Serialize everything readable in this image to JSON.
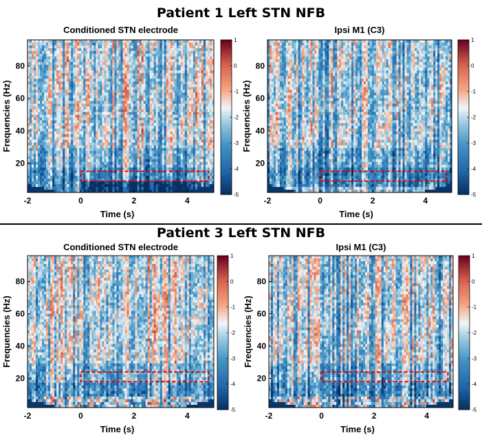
{
  "sections": [
    {
      "title": "Patient 1 Left STN NFB",
      "panels": [
        {
          "title": "Conditioned STN electrode"
        },
        {
          "title": "Ipsi M1 (C3)"
        }
      ]
    },
    {
      "title": "Patient 3 Left STN NFB",
      "panels": [
        {
          "title": "Conditioned STN electrode"
        },
        {
          "title": "Ipsi M1 (C3)"
        }
      ]
    }
  ],
  "chart_data": [
    {
      "type": "heatmap",
      "title": "Conditioned STN electrode",
      "section": "Patient 1 Left STN NFB",
      "xlabel": "Time (s)",
      "ylabel": "Frequencies (Hz)",
      "xlim": [
        -2,
        5
      ],
      "ylim": [
        2,
        96
      ],
      "xticks": [
        "-2",
        "0",
        "2",
        "4"
      ],
      "yticks": [
        "20",
        "40",
        "60",
        "80"
      ],
      "colorbar": {
        "range": [
          -5,
          1
        ],
        "ticks": [
          "1",
          "0",
          "-1",
          "-2",
          "-3",
          "-4",
          "-5"
        ],
        "colormap": "blue-white-red"
      },
      "highlight_box": {
        "x": [
          0,
          4.8
        ],
        "y": [
          9,
          15
        ],
        "color": "#e00000",
        "style": "dashed"
      }
    },
    {
      "type": "heatmap",
      "title": "Ipsi M1 (C3)",
      "section": "Patient 1 Left STN NFB",
      "xlabel": "Time (s)",
      "ylabel": "Frequencies (Hz)",
      "xlim": [
        -2,
        5
      ],
      "ylim": [
        2,
        96
      ],
      "xticks": [
        "-2",
        "0",
        "2",
        "4"
      ],
      "yticks": [
        "20",
        "40",
        "60",
        "80"
      ],
      "colorbar": {
        "range": [
          -5,
          1
        ],
        "ticks": [
          "1",
          "0",
          "-1",
          "-2",
          "-3",
          "-4",
          "-5"
        ],
        "colormap": "blue-white-red"
      },
      "highlight_box": {
        "x": [
          0,
          4.8
        ],
        "y": [
          9,
          15
        ],
        "color": "#e00000",
        "style": "dashed"
      }
    },
    {
      "type": "heatmap",
      "title": "Conditioned STN electrode",
      "section": "Patient 3 Left STN NFB",
      "xlabel": "Time (s)",
      "ylabel": "Frequencies (Hz)",
      "xlim": [
        -2,
        5
      ],
      "ylim": [
        2,
        96
      ],
      "xticks": [
        "-2",
        "0",
        "2",
        "4"
      ],
      "yticks": [
        "20",
        "40",
        "60",
        "80"
      ],
      "colorbar": {
        "range": [
          -5,
          1
        ],
        "ticks": [
          "1",
          "0",
          "-1",
          "-2",
          "-3",
          "-4",
          "-5"
        ],
        "colormap": "blue-white-red"
      },
      "highlight_box": {
        "x": [
          0,
          4.8
        ],
        "y": [
          18,
          24
        ],
        "color": "#e00000",
        "style": "dashed"
      }
    },
    {
      "type": "heatmap",
      "title": "Ipsi M1 (C3)",
      "section": "Patient 3 Left STN NFB",
      "xlabel": "Time (s)",
      "ylabel": "Frequencies (Hz)",
      "xlim": [
        -2,
        5
      ],
      "ylim": [
        2,
        96
      ],
      "xticks": [
        "-2",
        "0",
        "2",
        "4"
      ],
      "yticks": [
        "20",
        "40",
        "60",
        "80"
      ],
      "colorbar": {
        "range": [
          -5,
          1
        ],
        "ticks": [
          "1",
          "0",
          "-1",
          "-2",
          "-3",
          "-4",
          "-5"
        ],
        "colormap": "blue-white-red"
      },
      "highlight_box": {
        "x": [
          0,
          4.8
        ],
        "y": [
          18,
          24
        ],
        "color": "#e00000",
        "style": "dashed"
      }
    }
  ]
}
